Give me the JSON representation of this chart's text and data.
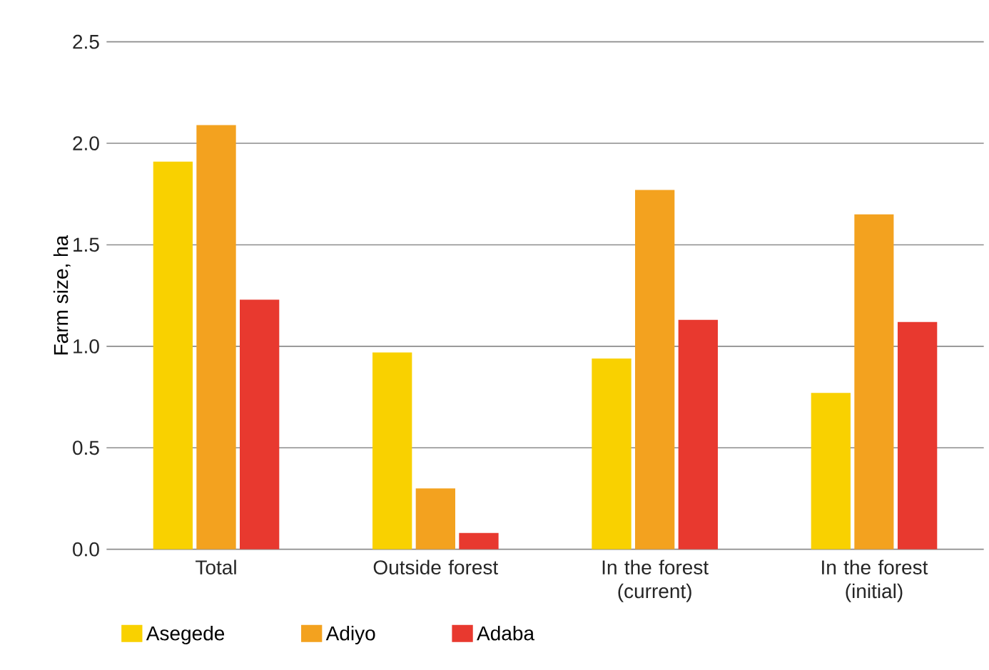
{
  "chart_data": {
    "type": "bar",
    "ylabel": "Farm size, ha",
    "categories": [
      "Total",
      "Outside forest",
      "In the forest (current)",
      "In the forest (initial)"
    ],
    "series": [
      {
        "name": "Asegede",
        "color": "#f9d100",
        "values": [
          1.91,
          0.97,
          0.94,
          0.77
        ]
      },
      {
        "name": "Adiyo",
        "color": "#f3a21f",
        "values": [
          2.09,
          0.3,
          1.77,
          1.65
        ]
      },
      {
        "name": "Adaba",
        "color": "#e8392f",
        "values": [
          1.23,
          0.08,
          1.13,
          1.12
        ]
      }
    ],
    "ylim": [
      0,
      2.5
    ],
    "yticks": [
      {
        "value": 0,
        "label": "0.0"
      },
      {
        "value": 0.5,
        "label": "0.5"
      },
      {
        "value": 1,
        "label": "1.0"
      },
      {
        "value": 1.5,
        "label": "1.5"
      },
      {
        "value": 2,
        "label": "2.0"
      },
      {
        "value": 2.5,
        "label": "2.5"
      }
    ],
    "grid": "y",
    "legend": "bottom"
  }
}
